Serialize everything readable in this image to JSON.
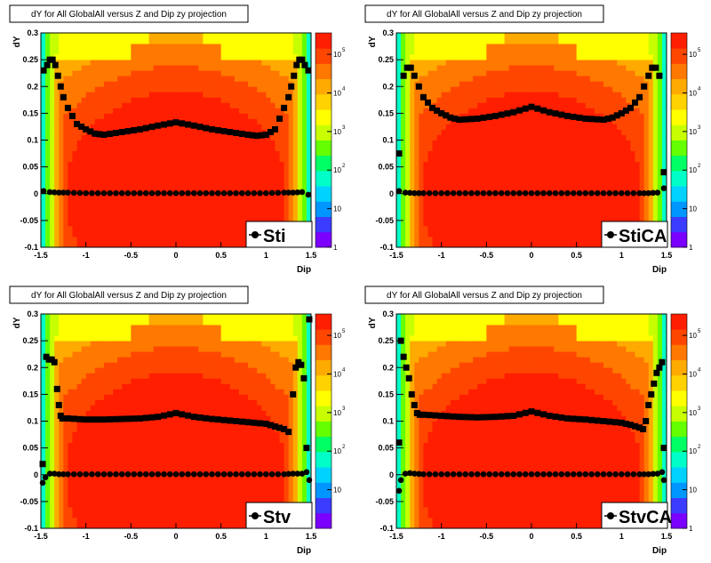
{
  "chart_data": [
    {
      "type": "heatmap",
      "title": "dY for All GlobalAll versus Z and Dip zy projection",
      "xlabel": "Dip",
      "ylabel": "dY",
      "xlim": [
        -1.5,
        1.5
      ],
      "ylim": [
        -0.1,
        0.3
      ],
      "x_ticks": [
        "-1.5",
        "-1",
        "-0.5",
        "0",
        "0.5",
        "1",
        "1.5"
      ],
      "y_ticks": [
        "-0.1",
        "-0.05",
        "0",
        "0.05",
        "0.1",
        "0.15",
        "0.2",
        "0.25",
        "0.3"
      ],
      "z_scale": "log",
      "z_ticks": [
        "1",
        "10",
        "10^2",
        "10^3",
        "10^4",
        "10^5"
      ],
      "legend": "Sti",
      "mean_x": [
        -1.47,
        -1.43,
        -1.4,
        -1.37,
        -1.34,
        -1.31,
        -1.28,
        -1.25,
        -1.2,
        -1.1,
        -1.0,
        -0.9,
        -0.8,
        -0.6,
        -0.4,
        -0.2,
        0.0,
        0.2,
        0.4,
        0.6,
        0.8,
        0.9,
        1.0,
        1.1,
        1.2,
        1.25,
        1.28,
        1.31,
        1.34,
        1.37,
        1.4,
        1.43,
        1.47
      ],
      "mean_y": [
        0.23,
        0.24,
        0.25,
        0.25,
        0.24,
        0.22,
        0.2,
        0.18,
        0.16,
        0.13,
        0.12,
        0.112,
        0.11,
        0.115,
        0.12,
        0.127,
        0.133,
        0.127,
        0.12,
        0.115,
        0.11,
        0.108,
        0.11,
        0.12,
        0.16,
        0.18,
        0.2,
        0.22,
        0.24,
        0.25,
        0.25,
        0.24,
        0.23
      ],
      "sigma_x": [
        -1.47,
        -1.4,
        -1.3,
        -1.2,
        -1.0,
        -0.8,
        -0.6,
        -0.4,
        -0.2,
        0.0,
        0.2,
        0.4,
        0.6,
        0.8,
        1.0,
        1.2,
        1.3,
        1.4,
        1.47
      ],
      "sigma_y": [
        0.005,
        0.003,
        0.002,
        0.002,
        0.001,
        0.001,
        0.001,
        0.001,
        0.001,
        0.001,
        0.001,
        0.001,
        0.001,
        0.001,
        0.001,
        0.002,
        0.002,
        0.003,
        -0.002
      ]
    },
    {
      "type": "heatmap",
      "title": "dY for All GlobalAll versus Z and Dip zy projection",
      "xlabel": "Dip",
      "ylabel": "dY",
      "xlim": [
        -1.5,
        1.5
      ],
      "ylim": [
        -0.1,
        0.3
      ],
      "x_ticks": [
        "-1.5",
        "-1",
        "-0.5",
        "0",
        "0.5",
        "1",
        "1.5"
      ],
      "y_ticks": [
        "-0.1",
        "-0.05",
        "0",
        "0.05",
        "0.1",
        "0.15",
        "0.2",
        "0.25",
        "0.3"
      ],
      "z_scale": "log",
      "z_ticks": [
        "1",
        "10",
        "10^2",
        "10^3",
        "10^4",
        "10^5"
      ],
      "legend": "StiCA",
      "mean_x": [
        -1.47,
        -1.42,
        -1.38,
        -1.34,
        -1.3,
        -1.25,
        -1.2,
        -1.1,
        -1.0,
        -0.9,
        -0.8,
        -0.6,
        -0.4,
        -0.2,
        0.0,
        0.2,
        0.4,
        0.6,
        0.8,
        0.9,
        1.0,
        1.1,
        1.2,
        1.25,
        1.3,
        1.34,
        1.38,
        1.42,
        1.47
      ],
      "mean_y": [
        0.075,
        0.22,
        0.235,
        0.235,
        0.22,
        0.2,
        0.18,
        0.16,
        0.15,
        0.142,
        0.138,
        0.14,
        0.145,
        0.152,
        0.162,
        0.152,
        0.145,
        0.14,
        0.138,
        0.142,
        0.15,
        0.16,
        0.18,
        0.2,
        0.22,
        0.235,
        0.235,
        0.22,
        0.04
      ],
      "sigma_x": [
        -1.47,
        -1.4,
        -1.3,
        -1.2,
        -1.0,
        -0.8,
        -0.6,
        -0.4,
        -0.2,
        0.0,
        0.2,
        0.4,
        0.6,
        0.8,
        1.0,
        1.2,
        1.3,
        1.4,
        1.47
      ],
      "sigma_y": [
        0.005,
        0.002,
        0.001,
        0.001,
        0.001,
        0.001,
        0.001,
        0.001,
        0.001,
        0.001,
        0.001,
        0.001,
        0.001,
        0.001,
        0.001,
        0.001,
        0.001,
        0.002,
        0.01
      ]
    },
    {
      "type": "heatmap",
      "title": "dY for All GlobalAll versus Z and Dip zy projection",
      "xlabel": "Dip",
      "ylabel": "dY",
      "xlim": [
        -1.5,
        1.5
      ],
      "ylim": [
        -0.1,
        0.3
      ],
      "x_ticks": [
        "-1.5",
        "-1",
        "-0.5",
        "0",
        "0.5",
        "1",
        "1.5"
      ],
      "y_ticks": [
        "-0.1",
        "-0.05",
        "0",
        "0.05",
        "0.1",
        "0.15",
        "0.2",
        "0.25",
        "0.3"
      ],
      "z_scale": "log",
      "z_ticks": [
        "10",
        "10^2",
        "10^3",
        "10^4",
        "10^5"
      ],
      "legend": "Stv",
      "mean_x": [
        -1.48,
        -1.44,
        -1.41,
        -1.38,
        -1.35,
        -1.32,
        -1.3,
        -1.28,
        -1.26,
        -1.2,
        -1.0,
        -0.8,
        -0.6,
        -0.4,
        -0.2,
        0.0,
        0.2,
        0.4,
        0.6,
        0.8,
        1.0,
        1.1,
        1.2,
        1.25,
        1.3,
        1.33,
        1.36,
        1.39,
        1.42,
        1.45,
        1.48
      ],
      "mean_y": [
        0.02,
        0.22,
        0.215,
        0.215,
        0.21,
        0.16,
        0.13,
        0.11,
        0.105,
        0.105,
        0.103,
        0.103,
        0.104,
        0.105,
        0.108,
        0.115,
        0.108,
        0.104,
        0.101,
        0.098,
        0.095,
        0.09,
        0.085,
        0.08,
        0.15,
        0.2,
        0.21,
        0.205,
        0.18,
        0.05,
        0.29
      ],
      "sigma_x": [
        -1.48,
        -1.45,
        -1.4,
        -1.35,
        -1.3,
        -1.2,
        -1.0,
        -0.8,
        -0.6,
        -0.4,
        -0.2,
        0.0,
        0.2,
        0.4,
        0.6,
        0.8,
        1.0,
        1.2,
        1.3,
        1.4,
        1.45,
        1.48
      ],
      "sigma_y": [
        -0.015,
        -0.005,
        0.002,
        0.002,
        0.001,
        0.001,
        0.001,
        0.001,
        0.001,
        0.001,
        0.001,
        0.001,
        0.001,
        0.001,
        0.001,
        0.001,
        0.001,
        0.001,
        0.002,
        0.002,
        0.005,
        -0.01
      ]
    },
    {
      "type": "heatmap",
      "title": "dY for All GlobalAll versus Z and Dip zy projection",
      "xlabel": "Dip",
      "ylabel": "dY",
      "xlim": [
        -1.5,
        1.5
      ],
      "ylim": [
        -0.1,
        0.3
      ],
      "x_ticks": [
        "-1.5",
        "-1",
        "-0.5",
        "0",
        "0.5",
        "1",
        "1.5"
      ],
      "y_ticks": [
        "-0.1",
        "-0.05",
        "0",
        "0.05",
        "0.1",
        "0.15",
        "0.2",
        "0.25",
        "0.3"
      ],
      "z_scale": "log",
      "z_ticks": [
        "1",
        "10",
        "10^2",
        "10^3",
        "10^4",
        "10^5"
      ],
      "legend": "StvCA",
      "mean_x": [
        -1.47,
        -1.45,
        -1.42,
        -1.39,
        -1.36,
        -1.33,
        -1.3,
        -1.27,
        -1.24,
        -1.2,
        -1.0,
        -0.8,
        -0.6,
        -0.4,
        -0.2,
        0.0,
        0.2,
        0.4,
        0.6,
        0.8,
        1.0,
        1.1,
        1.2,
        1.24,
        1.27,
        1.3,
        1.33,
        1.36,
        1.39,
        1.42,
        1.45,
        1.47
      ],
      "mean_y": [
        0.06,
        0.25,
        0.22,
        0.2,
        0.18,
        0.15,
        0.13,
        0.115,
        0.112,
        0.112,
        0.11,
        0.108,
        0.107,
        0.108,
        0.11,
        0.118,
        0.11,
        0.105,
        0.103,
        0.1,
        0.097,
        0.093,
        0.088,
        0.085,
        0.1,
        0.13,
        0.15,
        0.17,
        0.19,
        0.2,
        0.21,
        0.05
      ],
      "sigma_x": [
        -1.47,
        -1.45,
        -1.4,
        -1.35,
        -1.3,
        -1.2,
        -1.0,
        -0.8,
        -0.6,
        -0.4,
        -0.2,
        0.0,
        0.2,
        0.4,
        0.6,
        0.8,
        1.0,
        1.2,
        1.3,
        1.4,
        1.45,
        1.47
      ],
      "sigma_y": [
        -0.03,
        -0.01,
        0.002,
        0.003,
        0.002,
        0.001,
        0.001,
        0.001,
        0.001,
        0.001,
        0.001,
        0.001,
        0.001,
        0.001,
        0.001,
        0.001,
        0.001,
        0.001,
        0.001,
        0.002,
        0.005,
        -0.01
      ]
    }
  ],
  "footer_text": ""
}
